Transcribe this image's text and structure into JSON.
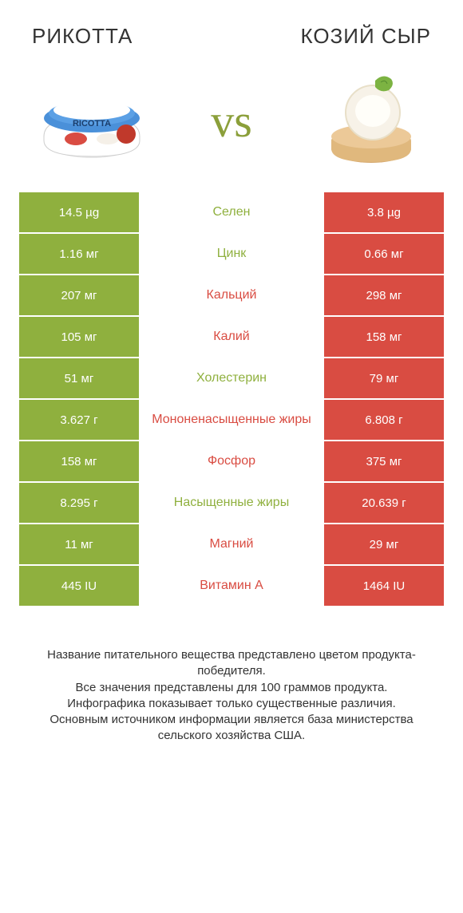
{
  "titles": {
    "left": "РИКОТТА",
    "right": "КОЗИЙ СЫР"
  },
  "vs": "vs",
  "colors": {
    "left": "#8fb03e",
    "right": "#d94c42",
    "leftText": "#8fb03e",
    "rightText": "#d94c42",
    "background": "#ffffff"
  },
  "rows": [
    {
      "left": "14.5 µg",
      "label": "Селен",
      "right": "3.8 µg",
      "winner": "left"
    },
    {
      "left": "1.16 мг",
      "label": "Цинк",
      "right": "0.66 мг",
      "winner": "left"
    },
    {
      "left": "207 мг",
      "label": "Кальций",
      "right": "298 мг",
      "winner": "right"
    },
    {
      "left": "105 мг",
      "label": "Калий",
      "right": "158 мг",
      "winner": "right"
    },
    {
      "left": "51 мг",
      "label": "Холестерин",
      "right": "79 мг",
      "winner": "left"
    },
    {
      "left": "3.627 г",
      "label": "Мононенасыщенные жиры",
      "right": "6.808 г",
      "winner": "right"
    },
    {
      "left": "158 мг",
      "label": "Фосфор",
      "right": "375 мг",
      "winner": "right"
    },
    {
      "left": "8.295 г",
      "label": "Насыщенные жиры",
      "right": "20.639 г",
      "winner": "left"
    },
    {
      "left": "11 мг",
      "label": "Магний",
      "right": "29 мг",
      "winner": "right"
    },
    {
      "left": "445 IU",
      "label": "Витамин A",
      "right": "1464 IU",
      "winner": "right"
    }
  ],
  "footer": {
    "line1": "Название питательного вещества представлено цветом продукта-победителя.",
    "line2": "Все значения представлены для 100 граммов продукта.",
    "line3": "Инфографика показывает только существенные различия.",
    "line4": "Основным источником информации является база министерства сельского хозяйства США."
  },
  "fonts": {
    "title_size": 26,
    "vs_size": 58,
    "cell_size": 15,
    "label_size": 16,
    "footer_size": 15
  }
}
